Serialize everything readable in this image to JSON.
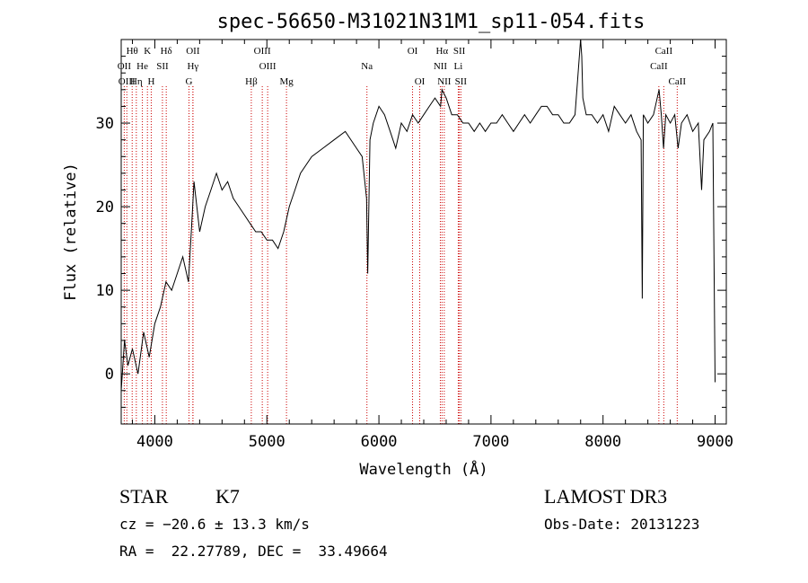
{
  "chart_data": {
    "type": "line",
    "title": "spec-56650-M31021N31M1_sp11-054.fits",
    "xlabel": "Wavelength (Å)",
    "ylabel": "Flux (relative)",
    "xlim": [
      3700,
      9100
    ],
    "ylim": [
      -6,
      40
    ],
    "xticks": [
      4000,
      5000,
      6000,
      7000,
      8000,
      9000
    ],
    "xtick_labels": [
      "4000",
      "5000",
      "6000",
      "7000",
      "8000",
      "9000"
    ],
    "yticks": [
      0,
      10,
      20,
      30
    ],
    "ytick_labels": [
      "0",
      "10",
      "20",
      "30"
    ],
    "series": [
      {
        "name": "spectrum",
        "x": [
          3700,
          3730,
          3760,
          3800,
          3850,
          3900,
          3950,
          4000,
          4050,
          4100,
          4150,
          4200,
          4250,
          4300,
          4330,
          4350,
          4400,
          4450,
          4500,
          4550,
          4600,
          4650,
          4700,
          4750,
          4800,
          4850,
          4900,
          4950,
          5000,
          5050,
          5100,
          5150,
          5200,
          5250,
          5300,
          5400,
          5500,
          5600,
          5700,
          5800,
          5850,
          5890,
          5900,
          5920,
          5950,
          6000,
          6050,
          6100,
          6150,
          6200,
          6250,
          6300,
          6350,
          6400,
          6450,
          6500,
          6550,
          6563,
          6600,
          6650,
          6700,
          6750,
          6800,
          6850,
          6900,
          6950,
          7000,
          7050,
          7100,
          7150,
          7200,
          7250,
          7300,
          7350,
          7400,
          7450,
          7500,
          7550,
          7600,
          7650,
          7700,
          7750,
          7800,
          7810,
          7820,
          7850,
          7900,
          7950,
          8000,
          8050,
          8100,
          8150,
          8200,
          8250,
          8300,
          8340,
          8350,
          8360,
          8400,
          8450,
          8500,
          8520,
          8540,
          8560,
          8600,
          8640,
          8670,
          8700,
          8750,
          8800,
          8850,
          8880,
          8900,
          8950,
          8980,
          9000
        ],
        "y": [
          -2,
          4,
          1,
          3,
          0,
          5,
          2,
          6,
          8,
          11,
          10,
          12,
          14,
          11,
          18,
          23,
          17,
          20,
          22,
          24,
          22,
          23,
          21,
          20,
          19,
          18,
          17,
          17,
          16,
          16,
          15,
          17,
          20,
          22,
          24,
          26,
          27,
          28,
          29,
          27,
          26,
          21,
          12,
          28,
          30,
          32,
          31,
          29,
          27,
          30,
          29,
          31,
          30,
          31,
          32,
          33,
          32,
          34,
          33,
          31,
          31,
          30,
          30,
          29,
          30,
          29,
          30,
          30,
          31,
          30,
          29,
          30,
          31,
          30,
          31,
          32,
          32,
          31,
          31,
          30,
          30,
          31,
          40,
          38,
          33,
          31,
          31,
          30,
          31,
          29,
          32,
          31,
          30,
          31,
          29,
          28,
          9,
          31,
          30,
          31,
          34,
          31,
          27,
          31,
          30,
          31,
          27,
          30,
          31,
          29,
          30,
          22,
          28,
          29,
          30,
          -1
        ]
      }
    ],
    "line_markers": [
      {
        "label": "Hθ",
        "wavelength": 3798,
        "row": 0
      },
      {
        "label": "K",
        "wavelength": 3934,
        "row": 0
      },
      {
        "label": "Hδ",
        "wavelength": 4102,
        "row": 0
      },
      {
        "label": "OII",
        "wavelength": 4340,
        "row": 0
      },
      {
        "label": "OIII",
        "wavelength": 4959,
        "row": 0
      },
      {
        "label": "OI",
        "wavelength": 6300,
        "row": 0
      },
      {
        "label": "Hα",
        "wavelength": 6563,
        "row": 0
      },
      {
        "label": "SII",
        "wavelength": 6717,
        "row": 0
      },
      {
        "label": "CaII",
        "wavelength": 8542,
        "row": 0
      },
      {
        "label": "OII",
        "wavelength": 3727,
        "row": 1
      },
      {
        "label": "He",
        "wavelength": 3889,
        "row": 1
      },
      {
        "label": "SII",
        "wavelength": 4068,
        "row": 1
      },
      {
        "label": "Hγ",
        "wavelength": 4340,
        "row": 1
      },
      {
        "label": "OIII",
        "wavelength": 5007,
        "row": 1
      },
      {
        "label": "Na",
        "wavelength": 5893,
        "row": 1
      },
      {
        "label": "NII",
        "wavelength": 6548,
        "row": 1
      },
      {
        "label": "Li",
        "wavelength": 6708,
        "row": 1
      },
      {
        "label": "CaII",
        "wavelength": 8498,
        "row": 1
      },
      {
        "label": "OIII",
        "wavelength": 3750,
        "row": 2
      },
      {
        "label": "Hη",
        "wavelength": 3835,
        "row": 2
      },
      {
        "label": "H",
        "wavelength": 3968,
        "row": 2
      },
      {
        "label": "G",
        "wavelength": 4305,
        "row": 2
      },
      {
        "label": "Hβ",
        "wavelength": 4861,
        "row": 2
      },
      {
        "label": "Mg",
        "wavelength": 5175,
        "row": 2
      },
      {
        "label": "OI",
        "wavelength": 6364,
        "row": 2
      },
      {
        "label": "NII",
        "wavelength": 6583,
        "row": 2
      },
      {
        "label": "SII",
        "wavelength": 6731,
        "row": 2
      },
      {
        "label": "CaII",
        "wavelength": 8662,
        "row": 2
      }
    ],
    "grid": false
  },
  "info": {
    "class": "STAR",
    "subclass": "K7",
    "survey": "LAMOST DR3",
    "cz": "cz = −20.6 ± 13.3 km/s",
    "obs_date": "Obs-Date: 20131223",
    "coords": "RA =  22.27789, DEC =  33.49664"
  },
  "colors": {
    "line_marker": "#cc0000",
    "spectrum": "#000000"
  }
}
